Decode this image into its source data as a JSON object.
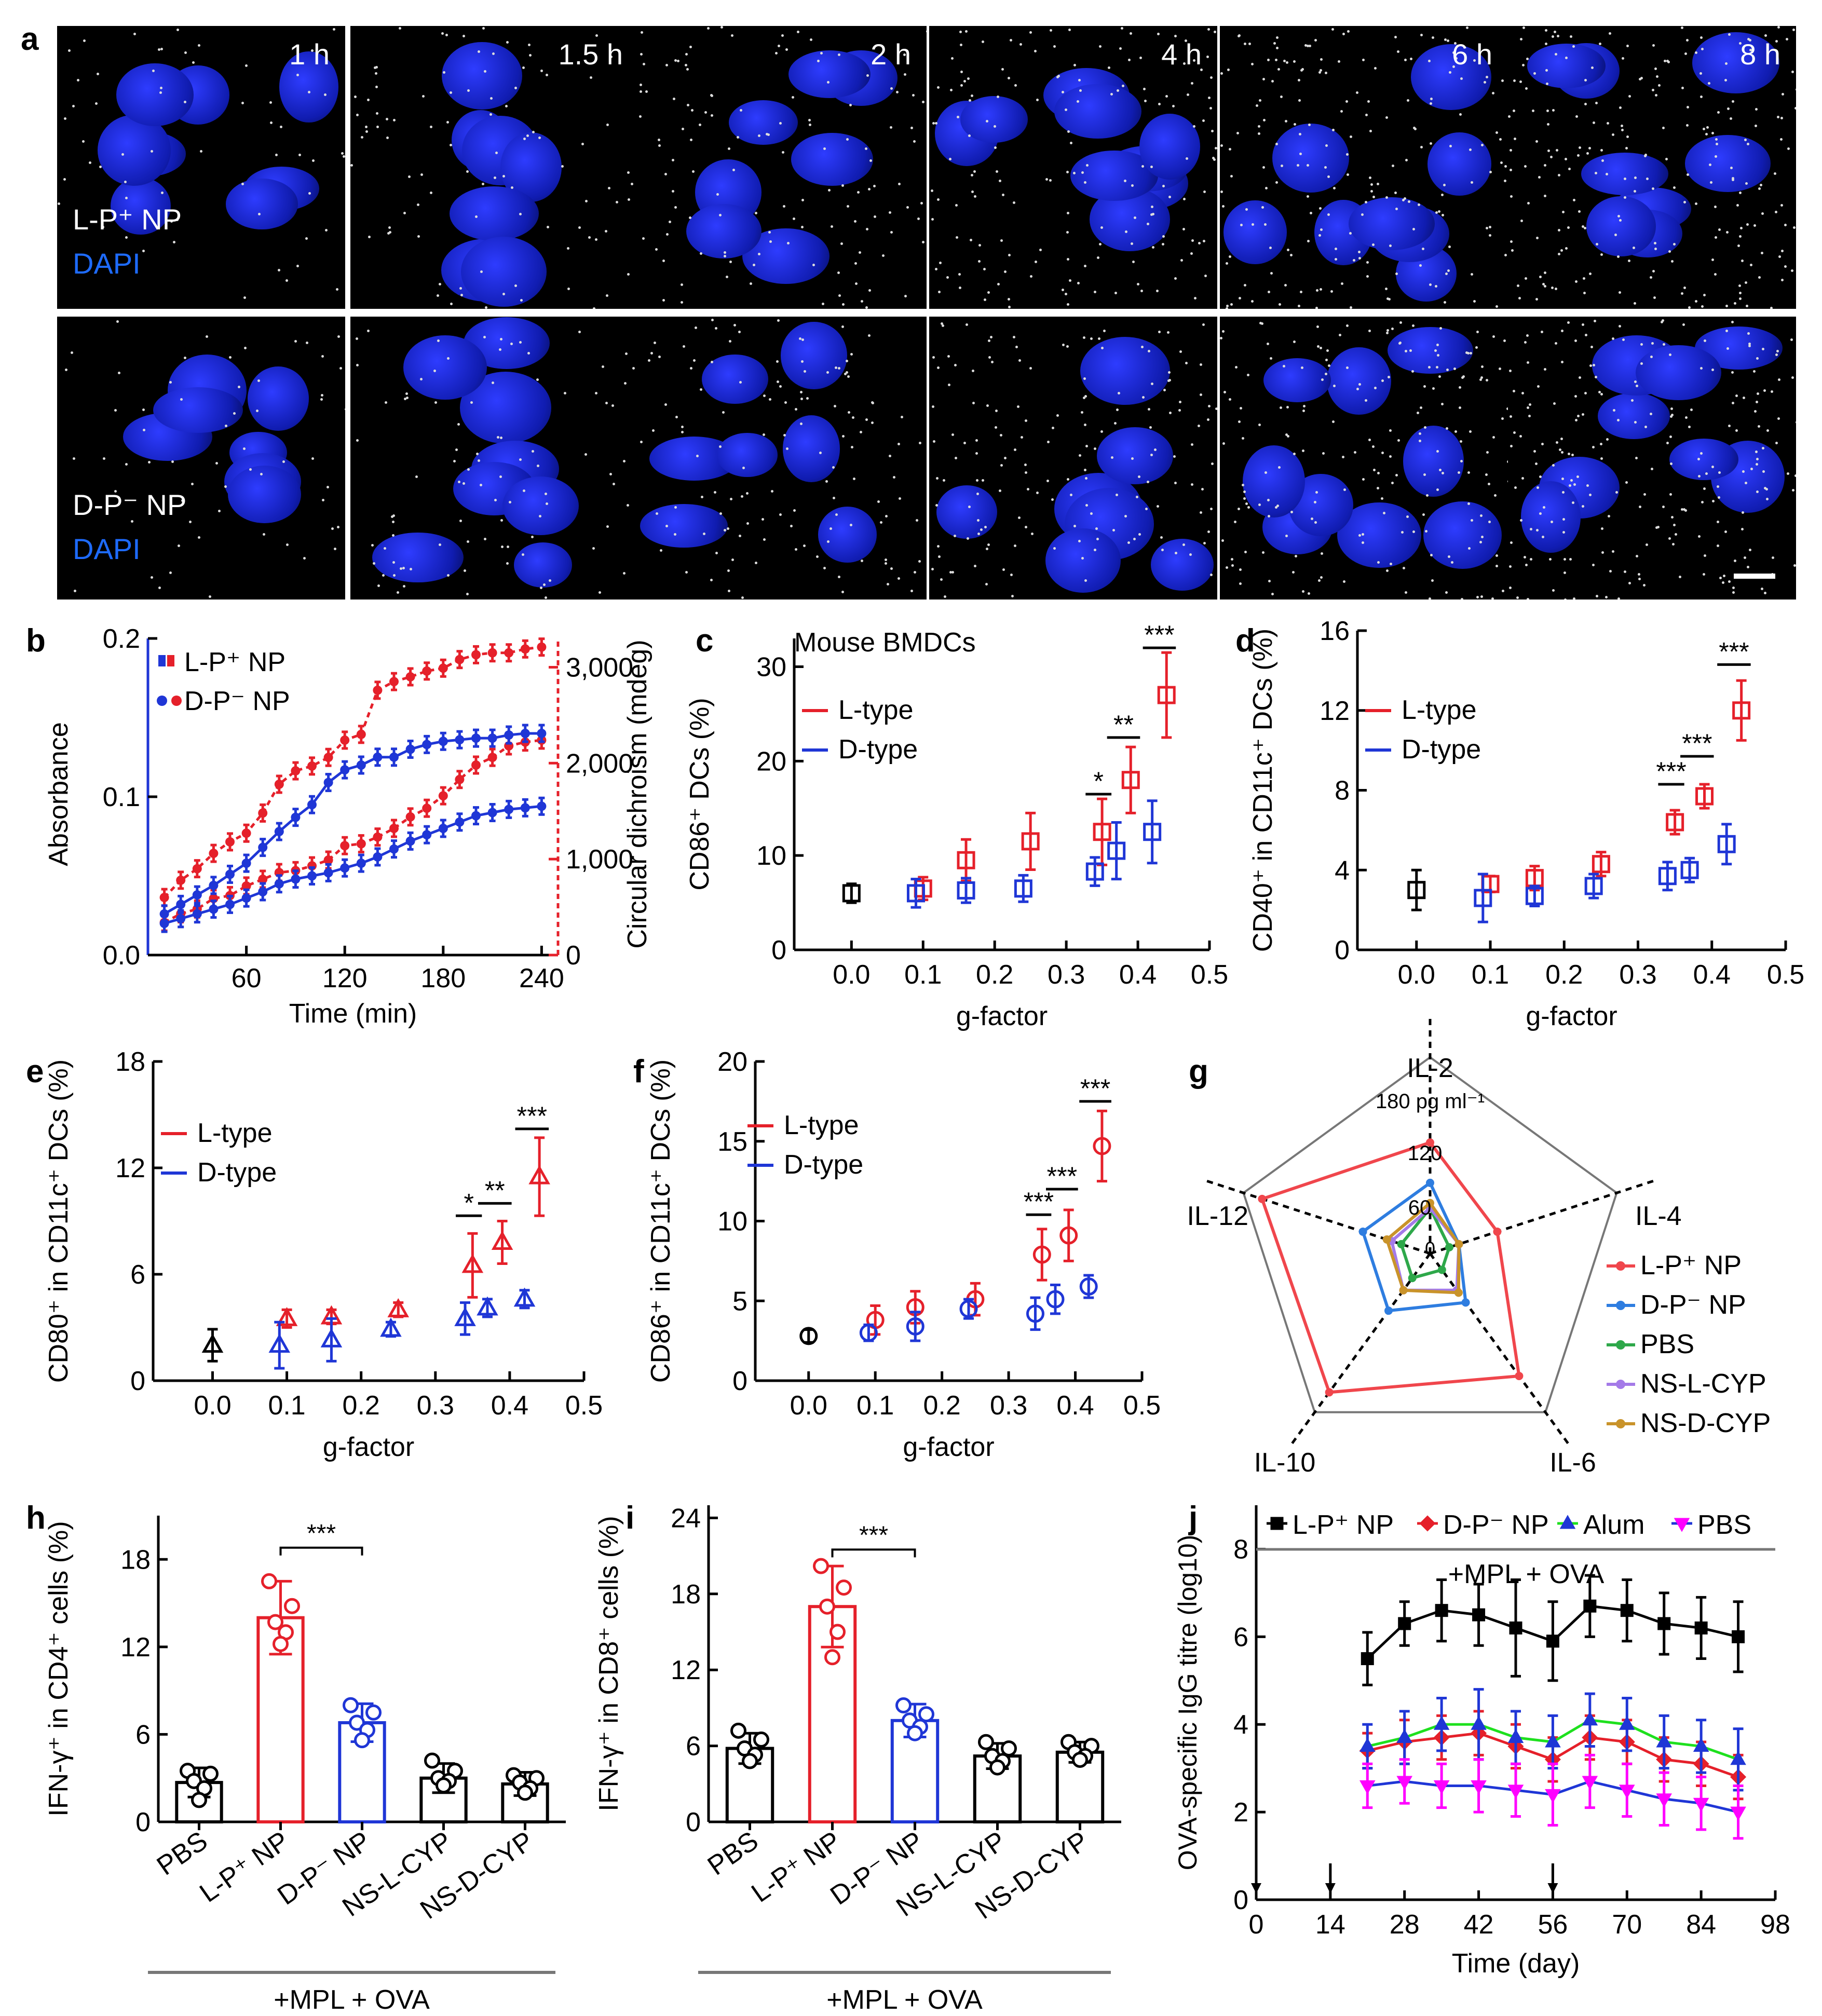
{
  "panel_a": {
    "letter": "a",
    "times": [
      "1 h",
      "1.5 h",
      "2 h",
      "4 h",
      "6 h",
      "8 h"
    ],
    "top_label": "L-P⁺ NP",
    "bottom_label": "D-P⁻ NP",
    "stain": "DAPI"
  },
  "chart_data": [
    {
      "panel": "b",
      "type": "line",
      "x": [
        10,
        20,
        30,
        40,
        50,
        60,
        70,
        80,
        90,
        100,
        110,
        120,
        130,
        140,
        150,
        160,
        170,
        180,
        190,
        200,
        210,
        220,
        230,
        240
      ],
      "xlabel": "Time (min)",
      "ylabel": "Absorbance",
      "y2label": "Circular dichroism (mdeg)",
      "xticks": [
        "60",
        "120",
        "180",
        "240"
      ],
      "yticks": [
        "0.0",
        "0.1",
        "0.2"
      ],
      "y2ticks": [
        "0",
        "1,000",
        "2,000",
        "3,000"
      ],
      "ylim": [
        0,
        0.2
      ],
      "y2lim": [
        0,
        3300
      ],
      "legend": [
        "L-P⁺ NP",
        "D-P⁻ NP"
      ],
      "colors": {
        "L": "#e5202a",
        "D": "#1f36d6"
      },
      "series": [
        {
          "name": "L-P⁺ NP CD",
          "axis": "y2",
          "color": "#e5202a",
          "dashed": true,
          "values": [
            600,
            780,
            900,
            1060,
            1180,
            1270,
            1480,
            1780,
            1920,
            1970,
            2060,
            2240,
            2300,
            2760,
            2850,
            2900,
            2960,
            2990,
            3080,
            3130,
            3150,
            3150,
            3190,
            3210
          ]
        },
        {
          "name": "D-P⁻ NP CD",
          "axis": "y2",
          "color": "#e5202a",
          "dashed": true,
          "values": [
            340,
            430,
            480,
            590,
            620,
            720,
            790,
            860,
            880,
            930,
            990,
            1140,
            1160,
            1230,
            1320,
            1440,
            1530,
            1660,
            1830,
            1980,
            2060,
            2180,
            2220,
            2240
          ]
        },
        {
          "name": "L-P⁺ NP Abs",
          "axis": "y",
          "color": "#1f36d6",
          "dashed": false,
          "values": [
            0.026,
            0.032,
            0.038,
            0.044,
            0.051,
            0.058,
            0.068,
            0.078,
            0.087,
            0.095,
            0.109,
            0.117,
            0.12,
            0.125,
            0.125,
            0.13,
            0.133,
            0.135,
            0.136,
            0.137,
            0.137,
            0.139,
            0.14,
            0.14
          ]
        },
        {
          "name": "D-P⁻ NP Abs",
          "axis": "y",
          "color": "#1f36d6",
          "dashed": false,
          "values": [
            0.02,
            0.023,
            0.026,
            0.029,
            0.032,
            0.036,
            0.04,
            0.045,
            0.048,
            0.05,
            0.052,
            0.055,
            0.058,
            0.062,
            0.067,
            0.072,
            0.076,
            0.08,
            0.084,
            0.088,
            0.09,
            0.092,
            0.093,
            0.094
          ]
        }
      ]
    },
    {
      "panel": "c",
      "type": "scatter",
      "title": "Mouse BMDCs",
      "xlabel": "g-factor",
      "ylabel": "CD86⁺ DCs (%)",
      "xlim": [
        -0.08,
        0.5
      ],
      "ylim": [
        0,
        33
      ],
      "xticks": [
        "0.0",
        "0.1",
        "0.2",
        "0.3",
        "0.4",
        "0.5"
      ],
      "yticks": [
        "0",
        "10",
        "20",
        "30"
      ],
      "marker": "square",
      "legend": [
        "L-type",
        "D-type"
      ],
      "control": {
        "x": 0.0,
        "y": 6,
        "err": 1
      },
      "series": [
        {
          "name": "L-type",
          "color": "#e5202a",
          "x": [
            0.1,
            0.16,
            0.25,
            0.35,
            0.39,
            0.44
          ],
          "y": [
            6.5,
            9.5,
            11.5,
            12.5,
            18,
            27
          ],
          "err": [
            1.2,
            2.2,
            3,
            3.5,
            3.5,
            4.5
          ]
        },
        {
          "name": "D-type",
          "color": "#1f36d6",
          "x": [
            0.09,
            0.16,
            0.24,
            0.34,
            0.37,
            0.42
          ],
          "y": [
            6,
            6.3,
            6.5,
            8.3,
            10.5,
            12.5
          ],
          "err": [
            1.5,
            1.3,
            1.4,
            1.5,
            3,
            3.3
          ]
        }
      ],
      "sig": [
        {
          "x1": 0.34,
          "x2": 0.35,
          "y": 16.5,
          "label": "*"
        },
        {
          "x1": 0.37,
          "x2": 0.39,
          "y": 22.5,
          "label": "**"
        },
        {
          "x1": 0.42,
          "x2": 0.44,
          "y": 32,
          "label": "***"
        }
      ]
    },
    {
      "panel": "d",
      "type": "scatter",
      "xlabel": "g-factor",
      "ylabel": "CD40⁺ in CD11c⁺ DCs (%)",
      "xlim": [
        -0.08,
        0.5
      ],
      "ylim": [
        0,
        16
      ],
      "xticks": [
        "0.0",
        "0.1",
        "0.2",
        "0.3",
        "0.4",
        "0.5"
      ],
      "yticks": [
        "0",
        "4",
        "8",
        "12",
        "16"
      ],
      "marker": "square",
      "legend": [
        "L-type",
        "D-type"
      ],
      "control": {
        "x": 0.0,
        "y": 3,
        "err": 1
      },
      "series": [
        {
          "name": "L-type",
          "color": "#e5202a",
          "x": [
            0.1,
            0.16,
            0.25,
            0.35,
            0.39,
            0.44
          ],
          "y": [
            3.3,
            3.6,
            4.3,
            6.4,
            7.7,
            12
          ],
          "err": [
            0.4,
            0.6,
            0.6,
            0.6,
            0.6,
            1.5
          ]
        },
        {
          "name": "D-type",
          "color": "#1f36d6",
          "x": [
            0.09,
            0.16,
            0.24,
            0.34,
            0.37,
            0.42
          ],
          "y": [
            2.6,
            2.7,
            3.2,
            3.7,
            4,
            5.3
          ],
          "err": [
            1.2,
            0.5,
            0.6,
            0.7,
            0.6,
            1
          ]
        }
      ],
      "sig": [
        {
          "x1": 0.34,
          "x2": 0.35,
          "y": 8.3,
          "label": "***"
        },
        {
          "x1": 0.37,
          "x2": 0.39,
          "y": 9.7,
          "label": "***"
        },
        {
          "x1": 0.42,
          "x2": 0.44,
          "y": 14.3,
          "label": "***"
        }
      ]
    },
    {
      "panel": "e",
      "type": "scatter",
      "xlabel": "g-factor",
      "ylabel": "CD80⁺ in CD11c⁺ DCs (%)",
      "xlim": [
        -0.08,
        0.5
      ],
      "ylim": [
        0,
        18
      ],
      "xticks": [
        "0.0",
        "0.1",
        "0.2",
        "0.3",
        "0.4",
        "0.5"
      ],
      "yticks": [
        "0",
        "6",
        "12",
        "18"
      ],
      "marker": "triangle",
      "legend": [
        "L-type",
        "D-type"
      ],
      "control": {
        "x": 0.0,
        "y": 2,
        "err": 0.9
      },
      "series": [
        {
          "name": "L-type",
          "color": "#e5202a",
          "x": [
            0.1,
            0.16,
            0.25,
            0.35,
            0.39,
            0.44
          ],
          "y": [
            3.5,
            3.6,
            4,
            6.5,
            7.8,
            11.5
          ],
          "err": [
            0.5,
            0.4,
            0.4,
            1.8,
            1.2,
            2.2
          ]
        },
        {
          "name": "D-type",
          "color": "#1f36d6",
          "x": [
            0.09,
            0.16,
            0.24,
            0.34,
            0.37,
            0.42
          ],
          "y": [
            2,
            2.3,
            2.9,
            3.5,
            4.1,
            4.6
          ],
          "err": [
            1.3,
            1.2,
            0.4,
            0.9,
            0.5,
            0.5
          ]
        }
      ],
      "sig": [
        {
          "x1": 0.34,
          "x2": 0.35,
          "y": 9.3,
          "label": "*"
        },
        {
          "x1": 0.37,
          "x2": 0.39,
          "y": 10,
          "label": "**"
        },
        {
          "x1": 0.42,
          "x2": 0.44,
          "y": 14.2,
          "label": "***"
        }
      ]
    },
    {
      "panel": "f",
      "type": "scatter",
      "xlabel": "g-factor",
      "ylabel": "CD86⁺ in CD11c⁺ DCs (%)",
      "xlim": [
        -0.08,
        0.5
      ],
      "ylim": [
        0,
        20
      ],
      "xticks": [
        "0.0",
        "0.1",
        "0.2",
        "0.3",
        "0.4",
        "0.5"
      ],
      "yticks": [
        "0",
        "5",
        "10",
        "15",
        "20"
      ],
      "marker": "circle",
      "legend": [
        "L-type",
        "D-type"
      ],
      "control": {
        "x": 0.0,
        "y": 2.8,
        "err": 0.4
      },
      "series": [
        {
          "name": "L-type",
          "color": "#e5202a",
          "x": [
            0.1,
            0.16,
            0.25,
            0.35,
            0.39,
            0.44
          ],
          "y": [
            3.8,
            4.6,
            5.1,
            7.9,
            9.1,
            14.7
          ],
          "err": [
            0.9,
            1,
            1,
            1.6,
            1.6,
            2.2
          ]
        },
        {
          "name": "D-type",
          "color": "#1f36d6",
          "x": [
            0.09,
            0.16,
            0.24,
            0.34,
            0.37,
            0.42
          ],
          "y": [
            3,
            3.4,
            4.5,
            4.2,
            5.1,
            5.9
          ],
          "err": [
            0.5,
            0.9,
            0.6,
            1,
            0.9,
            0.7
          ]
        }
      ],
      "sig": [
        {
          "x1": 0.34,
          "x2": 0.35,
          "y": 10.4,
          "label": "***"
        },
        {
          "x1": 0.37,
          "x2": 0.39,
          "y": 12,
          "label": "***"
        },
        {
          "x1": 0.42,
          "x2": 0.44,
          "y": 17.5,
          "label": "***"
        }
      ]
    },
    {
      "panel": "g",
      "type": "radar",
      "axes": [
        "IL-2",
        "IL-4",
        "IL-6",
        "IL-10",
        "IL-12"
      ],
      "max": 180,
      "ring_labels": [
        "180 pg ml⁻¹",
        "120",
        "60",
        "0"
      ],
      "series": [
        {
          "name": "L-P⁺ NP",
          "color": "#f0464c",
          "values": [
            110,
            70,
            150,
            170,
            175
          ]
        },
        {
          "name": "D-P⁻ NP",
          "color": "#2e7de0",
          "values": [
            70,
            30,
            60,
            70,
            70
          ]
        },
        {
          "name": "PBS",
          "color": "#2ea84a",
          "values": [
            45,
            20,
            20,
            30,
            30
          ]
        },
        {
          "name": "NS-L-CYP",
          "color": "#a47ae8",
          "values": [
            45,
            30,
            45,
            45,
            40
          ]
        },
        {
          "name": "NS-D-CYP",
          "color": "#c9932a",
          "values": [
            50,
            30,
            48,
            45,
            45
          ]
        }
      ]
    },
    {
      "panel": "h",
      "type": "bar",
      "ylabel": "IFN-γ⁺ in CD4⁺ cells (%)",
      "ylim": [
        0,
        21
      ],
      "yticks": [
        "0",
        "6",
        "12",
        "18"
      ],
      "categories": [
        "PBS",
        "L-P⁺ NP",
        "D-P⁻ NP",
        "NS-L-CYP",
        "NS-D-CYP"
      ],
      "colors": [
        "#000000",
        "#e5202a",
        "#1f36d6",
        "#000000",
        "#000000"
      ],
      "values": [
        2.7,
        14,
        6.8,
        3,
        2.6
      ],
      "err": [
        1,
        2.5,
        1.3,
        1,
        0.8
      ],
      "points": [
        [
          3.5,
          3.3,
          2.8,
          2.3,
          1.5
        ],
        [
          16.5,
          14.8,
          13.7,
          13,
          12.2
        ],
        [
          8,
          7.5,
          6.8,
          6.3,
          5.6
        ],
        [
          4.2,
          3.5,
          3,
          2.8,
          2.5
        ],
        [
          3.2,
          3,
          2.7,
          2.3,
          2
        ]
      ],
      "sig": {
        "from": 1,
        "to": 2,
        "label": "***",
        "y": 18.8
      },
      "group_label": "+MPL + OVA"
    },
    {
      "panel": "i",
      "type": "bar",
      "ylabel": "IFN-γ⁺ in CD8⁺ cells (%)",
      "ylim": [
        0,
        25
      ],
      "yticks": [
        "0",
        "6",
        "12",
        "18",
        "24"
      ],
      "categories": [
        "PBS",
        "L-P⁺ NP",
        "D-P⁻ NP",
        "NS-L-CYP",
        "NS-D-CYP"
      ],
      "colors": [
        "#000000",
        "#e5202a",
        "#1f36d6",
        "#000000",
        "#000000"
      ],
      "values": [
        5.8,
        17,
        8,
        5.2,
        5.5
      ],
      "err": [
        1.2,
        3.2,
        1.3,
        1,
        0.8
      ],
      "points": [
        [
          7.2,
          6.5,
          5.8,
          5.3,
          4.8
        ],
        [
          20.2,
          18.5,
          17,
          15,
          13
        ],
        [
          9.2,
          8.5,
          8,
          7.5,
          7
        ],
        [
          6.3,
          5.8,
          5.2,
          4.8,
          4.3
        ],
        [
          6.3,
          6,
          5.5,
          5.2,
          4.9
        ]
      ],
      "sig": {
        "from": 1,
        "to": 2,
        "label": "***",
        "y": 21.5
      },
      "group_label": "+MPL + OVA"
    },
    {
      "panel": "j",
      "type": "line",
      "xlabel": "Time (day)",
      "ylabel": "OVA-specific IgG titre (log10)",
      "xlim": [
        0,
        98
      ],
      "ylim": [
        0,
        9
      ],
      "xticks": [
        "0",
        "14",
        "28",
        "42",
        "56",
        "70",
        "84",
        "98"
      ],
      "yticks": [
        "0",
        "2",
        "4",
        "6",
        "8"
      ],
      "x": [
        21,
        28,
        35,
        42,
        49,
        56,
        63,
        70,
        77,
        84,
        91
      ],
      "legend_note": "+MPL + OVA",
      "arrows_at": [
        0,
        14,
        56
      ],
      "series": [
        {
          "name": "L-P⁺ NP",
          "color": "#000000",
          "marker": "square",
          "values": [
            5.5,
            6.3,
            6.6,
            6.5,
            6.2,
            5.9,
            6.7,
            6.6,
            6.3,
            6.2,
            6.0
          ],
          "err": [
            0.6,
            0.5,
            0.7,
            0.7,
            1.1,
            0.9,
            0.7,
            0.7,
            0.7,
            0.7,
            0.8
          ]
        },
        {
          "name": "D-P⁻ NP",
          "color": "#e5202a",
          "marker": "diamond",
          "values": [
            3.4,
            3.6,
            3.7,
            3.8,
            3.5,
            3.2,
            3.7,
            3.6,
            3.2,
            3.1,
            2.8
          ],
          "err": [
            0.4,
            0.5,
            0.5,
            0.5,
            0.5,
            0.5,
            0.5,
            0.5,
            0.5,
            0.5,
            0.5
          ]
        },
        {
          "name": "Alum",
          "color": "#1f36d6",
          "marker": "triangle",
          "lineColor": "#1ee01e",
          "values": [
            3.5,
            3.7,
            4.0,
            4.0,
            3.7,
            3.6,
            4.1,
            4.0,
            3.6,
            3.5,
            3.2
          ],
          "err": [
            0.5,
            0.6,
            0.6,
            0.8,
            0.6,
            0.6,
            0.6,
            0.6,
            0.6,
            0.6,
            0.7
          ]
        },
        {
          "name": "PBS",
          "color": "#ff00ff",
          "marker": "down-triangle",
          "lineColor": "#1f36d6",
          "values": [
            2.6,
            2.7,
            2.6,
            2.6,
            2.5,
            2.4,
            2.7,
            2.5,
            2.3,
            2.2,
            2.0
          ],
          "err": [
            0.5,
            0.5,
            0.5,
            0.6,
            0.6,
            0.7,
            0.6,
            0.6,
            0.6,
            0.6,
            0.6
          ]
        }
      ]
    }
  ],
  "letters": [
    "b",
    "c",
    "d",
    "e",
    "f",
    "g",
    "h",
    "i",
    "j"
  ]
}
